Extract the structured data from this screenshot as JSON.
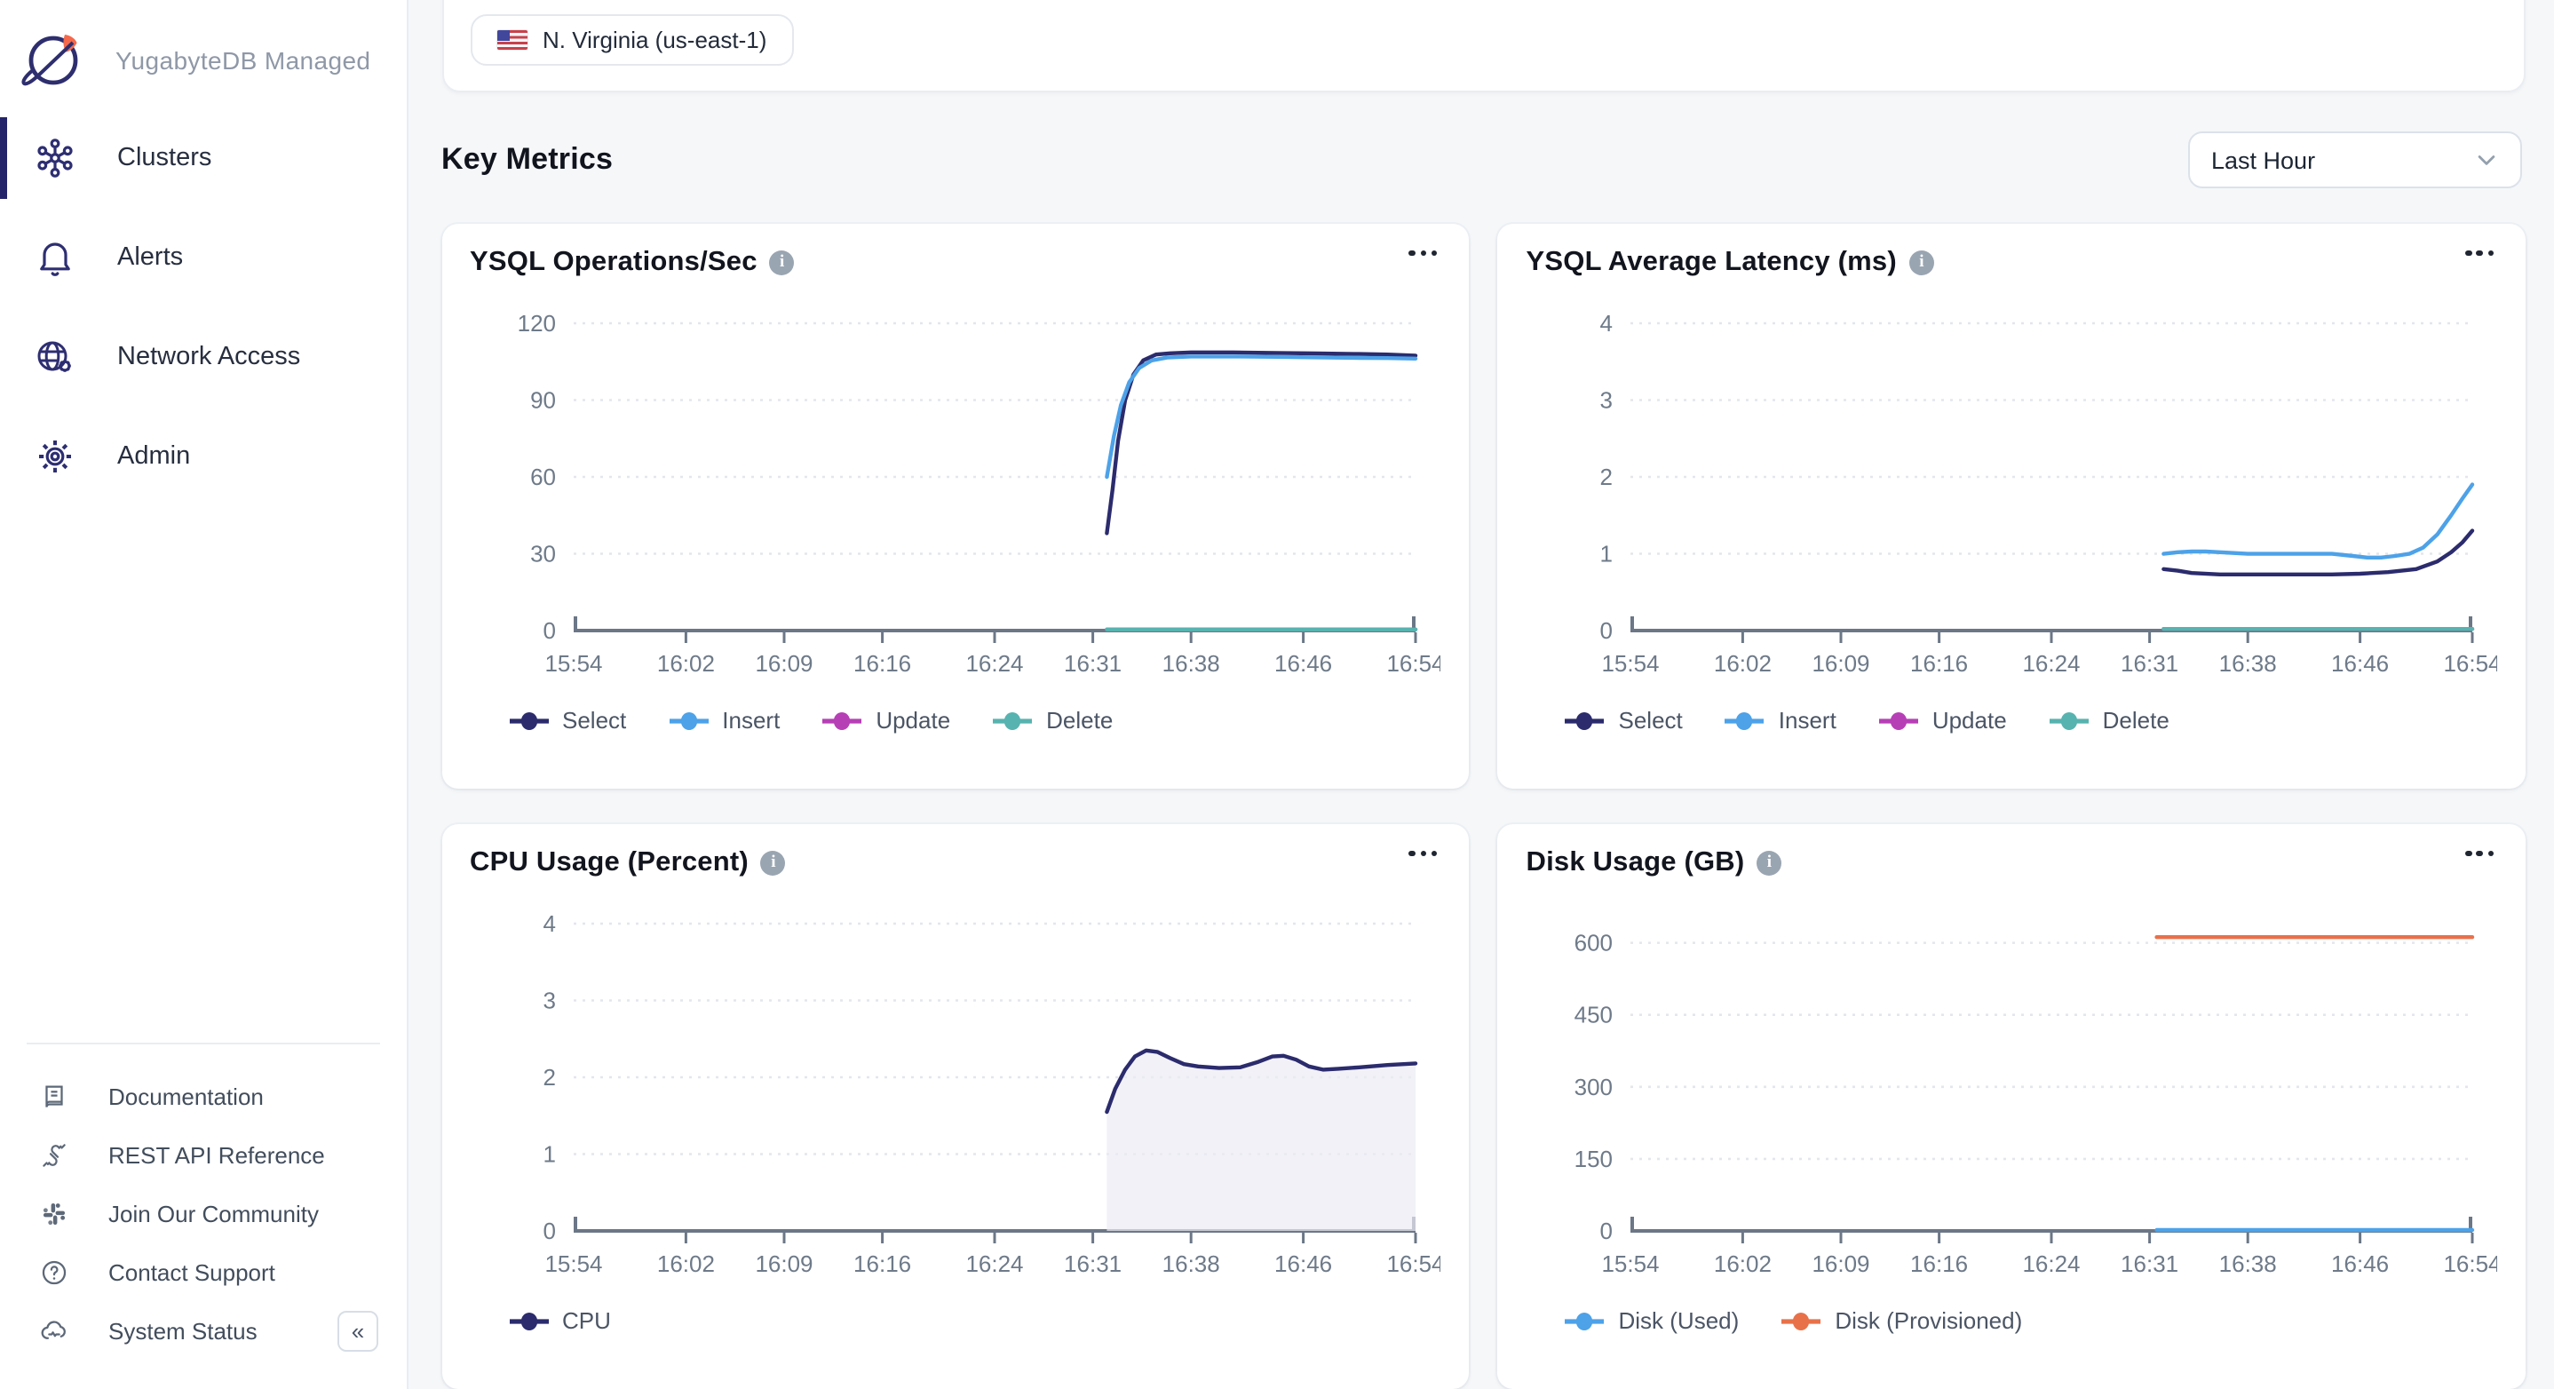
{
  "app": {
    "title": "YugabyteDB Managed"
  },
  "sidebar": {
    "items": [
      {
        "id": "clusters",
        "label": "Clusters",
        "icon": "clusters-icon",
        "active": true
      },
      {
        "id": "alerts",
        "label": "Alerts",
        "icon": "bell-icon",
        "active": false
      },
      {
        "id": "network",
        "label": "Network Access",
        "icon": "globe-gear-icon",
        "active": false
      },
      {
        "id": "admin",
        "label": "Admin",
        "icon": "gear-icon",
        "active": false
      }
    ],
    "footer_items": [
      {
        "id": "docs",
        "label": "Documentation",
        "icon": "book-icon"
      },
      {
        "id": "api",
        "label": "REST API Reference",
        "icon": "plug-icon"
      },
      {
        "id": "community",
        "label": "Join Our Community",
        "icon": "slack-icon"
      },
      {
        "id": "support",
        "label": "Contact Support",
        "icon": "question-circle-icon"
      },
      {
        "id": "status",
        "label": "System Status",
        "icon": "cloud-status-icon"
      }
    ],
    "collapse_button": {
      "icon": "chevrons-left-icon",
      "glyph": "«"
    }
  },
  "header": {
    "region": {
      "flag_icon": "us-flag-icon",
      "label": "N. Virginia (us-east-1)"
    }
  },
  "section": {
    "title": "Key Metrics",
    "time_range_value": "Last Hour"
  },
  "icons": [
    "info-icon",
    "ellipsis-icon",
    "chevron-down-icon"
  ],
  "chart_data": [
    {
      "type": "line",
      "title": "YSQL Operations/Sec",
      "x_range": [
        0,
        60
      ],
      "xticks": [
        {
          "t": 0,
          "label": "15:54"
        },
        {
          "t": 8,
          "label": "16:02"
        },
        {
          "t": 15,
          "label": "16:09"
        },
        {
          "t": 22,
          "label": "16:16"
        },
        {
          "t": 30,
          "label": "16:24"
        },
        {
          "t": 37,
          "label": "16:31"
        },
        {
          "t": 44,
          "label": "16:38"
        },
        {
          "t": 52,
          "label": "16:46"
        },
        {
          "t": 60,
          "label": "16:54"
        }
      ],
      "yticks": [
        0,
        30,
        60,
        90,
        120
      ],
      "ylim": [
        0,
        120
      ],
      "grid": true,
      "legend_position": "bottom",
      "series": [
        {
          "name": "Select",
          "color": "#2b2b6d",
          "points": [
            [
              38,
              38
            ],
            [
              38.4,
              55
            ],
            [
              38.8,
              74
            ],
            [
              39.3,
              90
            ],
            [
              39.9,
              100
            ],
            [
              40.6,
              105.5
            ],
            [
              41.5,
              107.8
            ],
            [
              42.5,
              108.3
            ],
            [
              44,
              108.6
            ],
            [
              47,
              108.6
            ],
            [
              50,
              108.4
            ],
            [
              53,
              108.2
            ],
            [
              56,
              108
            ],
            [
              58,
              107.8
            ],
            [
              60,
              107.4
            ]
          ]
        },
        {
          "name": "Insert",
          "color": "#4da2e8",
          "points": [
            [
              38,
              60
            ],
            [
              38.5,
              76
            ],
            [
              39,
              88
            ],
            [
              39.6,
              97
            ],
            [
              40.3,
              102.5
            ],
            [
              41.2,
              105.5
            ],
            [
              42.3,
              106.6
            ],
            [
              44,
              107
            ],
            [
              47,
              107
            ],
            [
              50,
              106.9
            ],
            [
              53,
              106.7
            ],
            [
              56,
              106.5
            ],
            [
              58,
              106.4
            ],
            [
              60,
              106.2
            ]
          ]
        },
        {
          "name": "Update",
          "color": "#b73fb6",
          "points": [
            [
              38,
              0.4
            ],
            [
              60,
              0.4
            ]
          ]
        },
        {
          "name": "Delete",
          "color": "#57b3af",
          "points": [
            [
              38,
              0.4
            ],
            [
              60,
              0.4
            ]
          ]
        }
      ]
    },
    {
      "type": "line",
      "title": "YSQL Average Latency (ms)",
      "x_range": [
        0,
        60
      ],
      "xticks": [
        {
          "t": 0,
          "label": "15:54"
        },
        {
          "t": 8,
          "label": "16:02"
        },
        {
          "t": 15,
          "label": "16:09"
        },
        {
          "t": 22,
          "label": "16:16"
        },
        {
          "t": 30,
          "label": "16:24"
        },
        {
          "t": 37,
          "label": "16:31"
        },
        {
          "t": 44,
          "label": "16:38"
        },
        {
          "t": 52,
          "label": "16:46"
        },
        {
          "t": 60,
          "label": "16:54"
        }
      ],
      "yticks": [
        0,
        1,
        2,
        3,
        4
      ],
      "ylim": [
        0,
        4
      ],
      "grid": true,
      "legend_position": "bottom",
      "series": [
        {
          "name": "Select",
          "color": "#2b2b6d",
          "points": [
            [
              38,
              0.8
            ],
            [
              39,
              0.78
            ],
            [
              40,
              0.75
            ],
            [
              42,
              0.73
            ],
            [
              44,
              0.73
            ],
            [
              46,
              0.73
            ],
            [
              48,
              0.73
            ],
            [
              50,
              0.73
            ],
            [
              52,
              0.74
            ],
            [
              54,
              0.76
            ],
            [
              56,
              0.8
            ],
            [
              57.5,
              0.9
            ],
            [
              58.5,
              1.02
            ],
            [
              59.3,
              1.15
            ],
            [
              60,
              1.3
            ]
          ]
        },
        {
          "name": "Insert",
          "color": "#4da2e8",
          "points": [
            [
              38,
              1.0
            ],
            [
              39,
              1.02
            ],
            [
              40,
              1.03
            ],
            [
              41,
              1.03
            ],
            [
              42,
              1.02
            ],
            [
              44,
              1.0
            ],
            [
              46,
              1.0
            ],
            [
              48,
              1.0
            ],
            [
              50,
              1.0
            ],
            [
              51.5,
              0.97
            ],
            [
              52.5,
              0.95
            ],
            [
              53.5,
              0.95
            ],
            [
              54.5,
              0.97
            ],
            [
              55.5,
              1.0
            ],
            [
              56.5,
              1.08
            ],
            [
              57.5,
              1.25
            ],
            [
              58.5,
              1.5
            ],
            [
              59.3,
              1.72
            ],
            [
              60,
              1.9
            ]
          ]
        },
        {
          "name": "Update",
          "color": "#b73fb6",
          "points": [
            [
              38,
              0.02
            ],
            [
              60,
              0.02
            ]
          ]
        },
        {
          "name": "Delete",
          "color": "#57b3af",
          "points": [
            [
              38,
              0.02
            ],
            [
              60,
              0.02
            ]
          ]
        }
      ]
    },
    {
      "type": "area",
      "title": "CPU Usage (Percent)",
      "x_range": [
        0,
        60
      ],
      "xticks": [
        {
          "t": 0,
          "label": "15:54"
        },
        {
          "t": 8,
          "label": "16:02"
        },
        {
          "t": 15,
          "label": "16:09"
        },
        {
          "t": 22,
          "label": "16:16"
        },
        {
          "t": 30,
          "label": "16:24"
        },
        {
          "t": 37,
          "label": "16:31"
        },
        {
          "t": 44,
          "label": "16:38"
        },
        {
          "t": 52,
          "label": "16:46"
        },
        {
          "t": 60,
          "label": "16:54"
        }
      ],
      "yticks": [
        0,
        1,
        2,
        3,
        4
      ],
      "ylim": [
        0,
        4
      ],
      "grid": true,
      "legend_position": "bottom",
      "series": [
        {
          "name": "CPU",
          "color": "#2b2b6d",
          "fill": "#ebebf4",
          "points": [
            [
              38,
              1.55
            ],
            [
              38.6,
              1.85
            ],
            [
              39.3,
              2.1
            ],
            [
              40,
              2.27
            ],
            [
              40.8,
              2.35
            ],
            [
              41.6,
              2.33
            ],
            [
              42.5,
              2.25
            ],
            [
              43.5,
              2.17
            ],
            [
              44.5,
              2.14
            ],
            [
              46,
              2.12
            ],
            [
              47.5,
              2.13
            ],
            [
              48.8,
              2.2
            ],
            [
              49.8,
              2.27
            ],
            [
              50.6,
              2.28
            ],
            [
              51.5,
              2.23
            ],
            [
              52.4,
              2.14
            ],
            [
              53.4,
              2.1
            ],
            [
              54.5,
              2.11
            ],
            [
              56,
              2.13
            ],
            [
              58,
              2.16
            ],
            [
              60,
              2.18
            ]
          ]
        }
      ]
    },
    {
      "type": "line",
      "title": "Disk Usage (GB)",
      "x_range": [
        0,
        60
      ],
      "xticks": [
        {
          "t": 0,
          "label": "15:54"
        },
        {
          "t": 8,
          "label": "16:02"
        },
        {
          "t": 15,
          "label": "16:09"
        },
        {
          "t": 22,
          "label": "16:16"
        },
        {
          "t": 30,
          "label": "16:24"
        },
        {
          "t": 37,
          "label": "16:31"
        },
        {
          "t": 44,
          "label": "16:38"
        },
        {
          "t": 52,
          "label": "16:46"
        },
        {
          "t": 60,
          "label": "16:54"
        }
      ],
      "yticks": [
        0,
        150,
        300,
        450,
        600
      ],
      "ylim": [
        0,
        640
      ],
      "grid": true,
      "legend_position": "bottom",
      "series": [
        {
          "name": "Disk (Used)",
          "color": "#4da2e8",
          "points": [
            [
              37.5,
              2
            ],
            [
              60,
              2
            ]
          ]
        },
        {
          "name": "Disk (Provisioned)",
          "color": "#e8714a",
          "points": [
            [
              37.5,
              612
            ],
            [
              60,
              612
            ]
          ]
        }
      ]
    }
  ]
}
